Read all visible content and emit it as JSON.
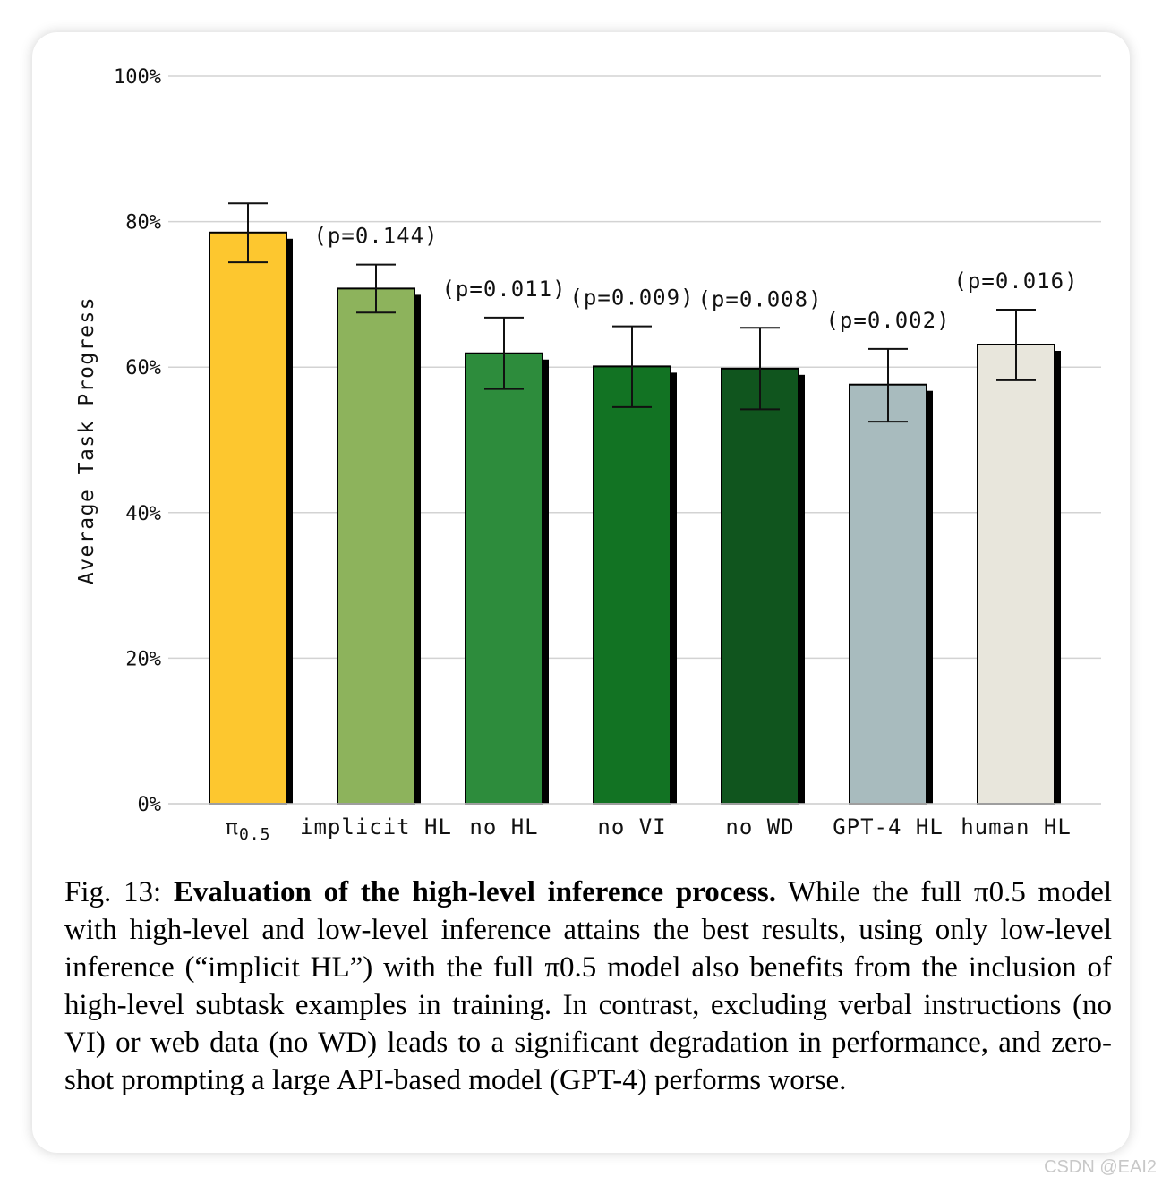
{
  "chart_data": {
    "type": "bar",
    "ylabel": "Average Task Progress",
    "ylim": [
      0,
      100
    ],
    "y_ticks": [
      "0%",
      "20%",
      "40%",
      "60%",
      "80%",
      "100%"
    ],
    "y_tick_values": [
      0,
      20,
      40,
      60,
      80,
      100
    ],
    "grid": true,
    "categories": [
      "π0.5",
      "implicit HL",
      "no HL",
      "no VI",
      "no WD",
      "GPT-4 HL",
      "human HL"
    ],
    "values": [
      78.5,
      70.8,
      61.9,
      60.1,
      59.8,
      57.6,
      63.1
    ],
    "error_low": [
      74.4,
      67.5,
      57.0,
      54.5,
      54.2,
      52.5,
      58.2
    ],
    "error_high": [
      82.5,
      74.1,
      66.8,
      65.6,
      65.4,
      62.5,
      67.9
    ],
    "annotations": [
      "",
      "(p=0.144)",
      "(p=0.011)",
      "(p=0.009)",
      "(p=0.008)",
      "(p=0.002)",
      "(p=0.016)"
    ],
    "colors": [
      "#fdc72f",
      "#8db35c",
      "#2d8c3c",
      "#127323",
      "#10551e",
      "#a8bbbe",
      "#e8e6dc"
    ]
  },
  "caption": {
    "label": "Fig. 13:",
    "title": "Evaluation of the high-level inference process.",
    "body": "While the full π0.5 model with high-level and low-level inference attains the best results, using only low-level inference (“implicit HL”) with the full π0.5 model also benefits from the inclusion of high-level subtask examples in training. In contrast, excluding verbal instructions (no VI) or web data (no WD) leads to a significant degradation in performance, and zero-shot prompting a large API-based model (GPT-4) performs worse."
  },
  "watermark": "CSDN @EAI2"
}
